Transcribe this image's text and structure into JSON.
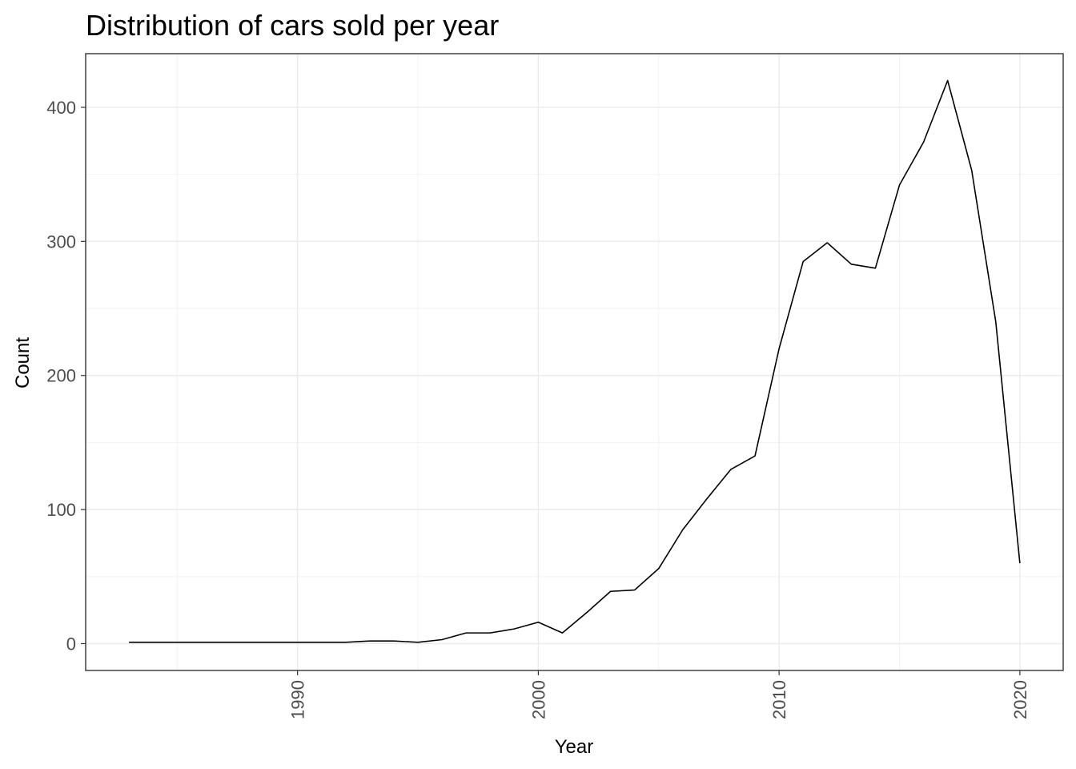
{
  "chart_data": {
    "type": "line",
    "title": "Distribution of cars sold per year",
    "xlabel": "Year",
    "ylabel": "Count",
    "xlim": [
      1981.2,
      2021.8
    ],
    "ylim": [
      -20,
      440
    ],
    "x_ticks": [
      1990,
      2000,
      2010,
      2020
    ],
    "x_tick_labels": [
      "1990",
      "2000",
      "2010",
      "2020"
    ],
    "y_ticks": [
      0,
      100,
      200,
      300,
      400
    ],
    "y_tick_labels": [
      "0",
      "100",
      "200",
      "300",
      "400"
    ],
    "x_minor_ticks": [
      1985,
      1995,
      2005,
      2015
    ],
    "y_minor_ticks": [
      50,
      150,
      250,
      350
    ],
    "grid": true,
    "x_tick_rotation": "vertical",
    "x": [
      1983,
      1984,
      1985,
      1986,
      1987,
      1988,
      1989,
      1990,
      1991,
      1992,
      1993,
      1994,
      1995,
      1996,
      1997,
      1998,
      1999,
      2000,
      2001,
      2002,
      2003,
      2004,
      2005,
      2006,
      2007,
      2008,
      2009,
      2010,
      2011,
      2012,
      2013,
      2014,
      2015,
      2016,
      2017,
      2018,
      2019,
      2020
    ],
    "y": [
      1,
      1,
      1,
      1,
      1,
      1,
      1,
      1,
      1,
      1,
      2,
      2,
      1,
      3,
      8,
      8,
      11,
      16,
      8,
      23,
      39,
      40,
      56,
      85,
      108,
      130,
      140,
      220,
      285,
      299,
      283,
      280,
      342,
      374,
      420,
      353,
      240,
      60
    ],
    "line_color": "#000000"
  }
}
